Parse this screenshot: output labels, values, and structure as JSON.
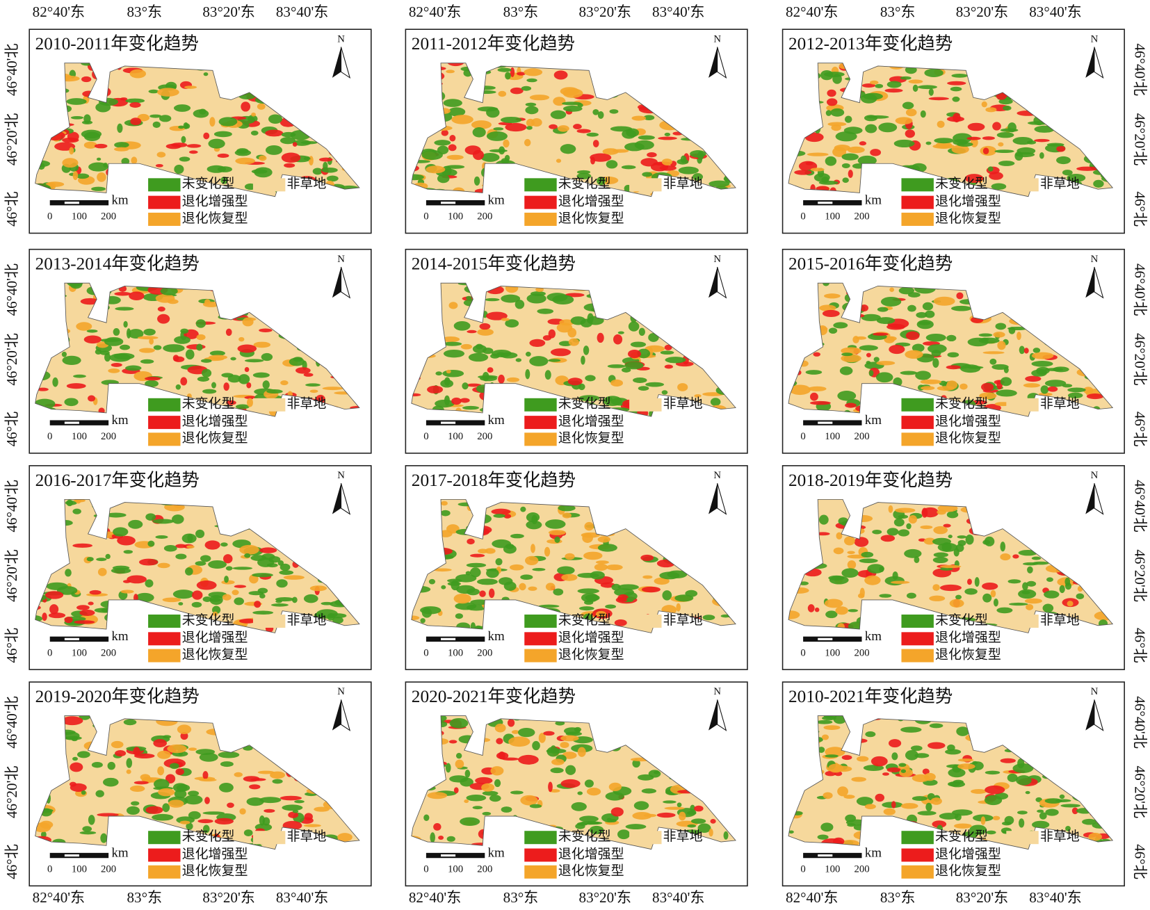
{
  "x_labels": [
    "82°40'东",
    "83°东",
    "83°20'东",
    "83°40'东"
  ],
  "y_labels": [
    "46°40'北",
    "46°20'北",
    "46°北"
  ],
  "panels": [
    {
      "title": "2010-2011年变化趋势"
    },
    {
      "title": "2011-2012年变化趋势"
    },
    {
      "title": "2012-2013年变化趋势"
    },
    {
      "title": "2013-2014年变化趋势"
    },
    {
      "title": "2014-2015年变化趋势"
    },
    {
      "title": "2015-2016年变化趋势"
    },
    {
      "title": "2016-2017年变化趋势"
    },
    {
      "title": "2017-2018年变化趋势"
    },
    {
      "title": "2018-2019年变化趋势"
    },
    {
      "title": "2019-2020年变化趋势"
    },
    {
      "title": "2020-2021年变化趋势"
    },
    {
      "title": "2010-2021年变化趋势"
    }
  ],
  "legend": [
    {
      "label": "未变化型",
      "color": "#3f9b1f"
    },
    {
      "label": "非草地",
      "color": "#f6d89c"
    },
    {
      "label": "退化增强型",
      "color": "#ec1c1c"
    },
    {
      "label": "退化恢复型",
      "color": "#f4a52a"
    }
  ],
  "north": "N",
  "scale": {
    "unit": "km",
    "labels": [
      0,
      100,
      200
    ]
  }
}
